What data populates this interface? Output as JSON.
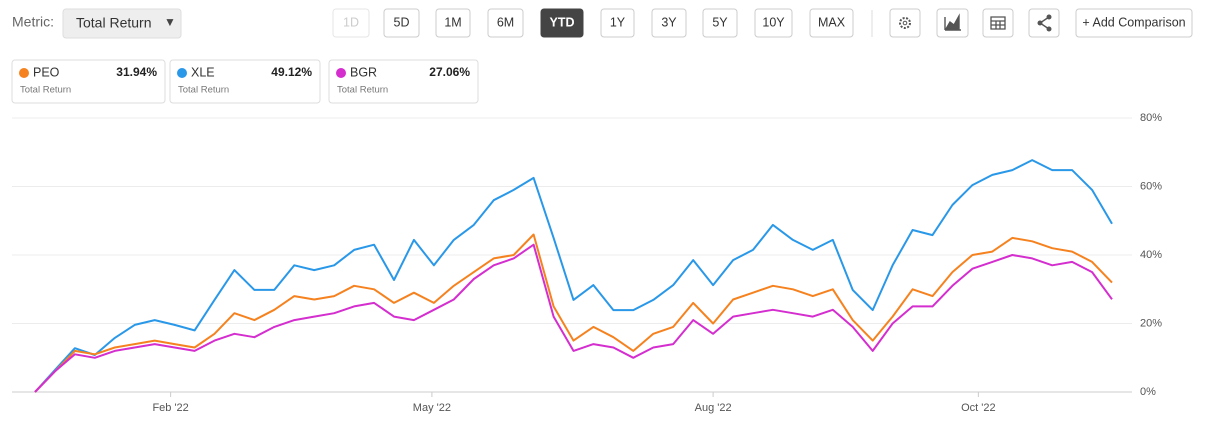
{
  "toolbar": {
    "metric_label": "Metric:",
    "metric_value": "Total Return",
    "dropdown_arrow": "▼",
    "ranges": [
      "1D",
      "5D",
      "1M",
      "6M",
      "YTD",
      "1Y",
      "3Y",
      "5Y",
      "10Y",
      "MAX"
    ],
    "active_range_index": 4,
    "disabled_range_indices": [
      0
    ],
    "add_comparison": "+ Add Comparison"
  },
  "chart_data": {
    "type": "line",
    "xlim": [
      0,
      54
    ],
    "xticks": [
      {
        "value": 6.8,
        "label": "Feb '22"
      },
      {
        "value": 19.9,
        "label": "May '22"
      },
      {
        "value": 34,
        "label": "Aug '22"
      },
      {
        "value": 47.3,
        "label": "Oct '22"
      }
    ],
    "ylim": [
      0,
      80
    ],
    "yticks": [
      {
        "value": 0,
        "label": "0%"
      },
      {
        "value": 20,
        "label": "20%"
      },
      {
        "value": 40,
        "label": "40%"
      },
      {
        "value": 60,
        "label": "60%"
      },
      {
        "value": 80,
        "label": "80%"
      }
    ],
    "grid": true,
    "series": [
      {
        "name": "PEO",
        "color": "#f5821f",
        "total_label": "31.94%",
        "metric": "Total Return",
        "values": [
          0,
          6,
          12,
          11,
          13,
          14,
          15,
          14,
          13,
          17,
          23,
          21,
          24,
          28,
          27,
          28,
          31,
          30,
          26,
          29,
          26,
          31,
          35,
          39,
          40,
          46,
          25,
          15,
          19,
          16,
          12,
          17,
          19,
          26,
          20,
          27,
          29,
          31,
          30,
          28,
          30,
          21,
          15,
          22,
          30,
          28,
          35,
          40,
          41,
          45,
          44,
          42,
          41,
          38,
          31.94
        ]
      },
      {
        "name": "XLE",
        "color": "#2a98e8",
        "total_label": "49.12%",
        "metric": "Total Return",
        "values": [
          0,
          6.4,
          12.8,
          10.8,
          15.8,
          19.6,
          21,
          19.6,
          18,
          26.9,
          35.6,
          29.8,
          29.8,
          37,
          35.6,
          37,
          41.5,
          43,
          32.7,
          44.4,
          37,
          44.4,
          48.8,
          56,
          59,
          62.5,
          45,
          26.9,
          31.2,
          23.9,
          23.9,
          26.9,
          31.2,
          38.5,
          31.2,
          38.5,
          41.5,
          48.8,
          44.4,
          41.5,
          44.4,
          29.8,
          23.9,
          37,
          47.3,
          45.8,
          54.6,
          60.4,
          63.4,
          64.8,
          67.7,
          64.8,
          64.8,
          59,
          49.12
        ]
      },
      {
        "name": "BGR",
        "color": "#d42ecf",
        "total_label": "27.06%",
        "metric": "Total Return",
        "values": [
          0,
          6,
          11,
          10,
          12,
          13,
          14,
          13,
          12,
          15,
          17,
          16,
          19,
          21,
          22,
          23,
          25,
          26,
          22,
          21,
          24,
          27,
          33,
          37,
          39,
          43,
          22,
          12,
          14,
          13,
          10,
          13,
          14,
          21,
          17,
          22,
          23,
          24,
          23,
          22,
          24,
          19,
          12,
          20,
          25,
          25,
          31,
          36,
          38,
          40,
          39,
          37,
          38,
          35,
          27.06
        ]
      }
    ]
  }
}
